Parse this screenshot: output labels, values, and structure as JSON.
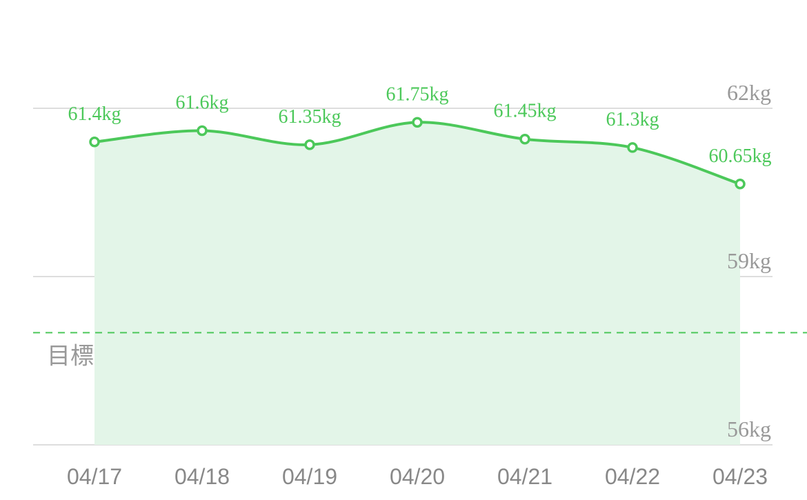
{
  "chart_data": {
    "type": "line",
    "categories": [
      "04/17",
      "04/18",
      "04/19",
      "04/20",
      "04/21",
      "04/22",
      "04/23"
    ],
    "values": [
      61.4,
      61.6,
      61.35,
      61.75,
      61.45,
      61.3,
      60.65
    ],
    "value_labels": [
      "61.4kg",
      "61.6kg",
      "61.35kg",
      "61.75kg",
      "61.45kg",
      "61.3kg",
      "60.65kg"
    ],
    "color": "#4cc85a",
    "fill": "#e3f5e8",
    "ylim": [
      56,
      62
    ],
    "yticks": [
      {
        "value": 56,
        "label": "56kg"
      },
      {
        "value": 59,
        "label": "59kg"
      },
      {
        "value": 62,
        "label": "62kg"
      }
    ],
    "grid": true,
    "target": 58,
    "target_label": "目標"
  }
}
